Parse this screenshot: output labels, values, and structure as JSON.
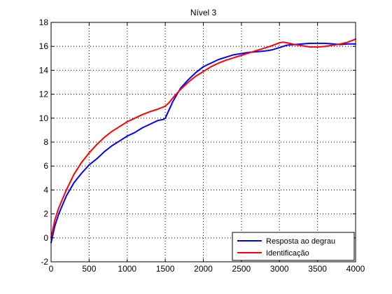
{
  "chart_data": {
    "type": "line",
    "title": "Nível 3",
    "xlabel": "",
    "ylabel": "",
    "xlim": [
      0,
      4000
    ],
    "ylim": [
      -2,
      18
    ],
    "xticks": [
      0,
      500,
      1000,
      1500,
      2000,
      2500,
      3000,
      3500,
      4000
    ],
    "yticks": [
      -2,
      0,
      2,
      4,
      6,
      8,
      10,
      12,
      14,
      16,
      18
    ],
    "grid": true,
    "legend_position": "bottom-right",
    "series": [
      {
        "name": "Resposta ao degrau",
        "color": "#0000ff",
        "x": [
          0,
          50,
          100,
          200,
          300,
          400,
          500,
          600,
          700,
          800,
          900,
          1000,
          1100,
          1200,
          1300,
          1400,
          1480,
          1500,
          1550,
          1600,
          1700,
          1800,
          1900,
          2000,
          2100,
          2200,
          2300,
          2400,
          2500,
          2600,
          2700,
          2800,
          2900,
          3000,
          3100,
          3200,
          3300,
          3400,
          3500,
          3600,
          3700,
          3800,
          3900,
          4000
        ],
        "y": [
          -0.4,
          1.0,
          2.0,
          3.5,
          4.6,
          5.4,
          6.1,
          6.6,
          7.2,
          7.7,
          8.1,
          8.5,
          8.8,
          9.2,
          9.5,
          9.8,
          9.9,
          10.0,
          10.7,
          11.4,
          12.5,
          13.2,
          13.8,
          14.3,
          14.6,
          14.9,
          15.1,
          15.3,
          15.4,
          15.5,
          15.55,
          15.6,
          15.7,
          15.9,
          16.1,
          16.15,
          16.2,
          16.25,
          16.25,
          16.25,
          16.2,
          16.15,
          16.2,
          16.2
        ]
      },
      {
        "name": "Identificação",
        "color": "#ff0000",
        "x": [
          0,
          50,
          100,
          200,
          300,
          400,
          500,
          600,
          700,
          800,
          900,
          1000,
          1100,
          1200,
          1300,
          1400,
          1500,
          1550,
          1600,
          1700,
          1800,
          1900,
          2000,
          2100,
          2200,
          2300,
          2400,
          2500,
          2600,
          2700,
          2800,
          2900,
          3000,
          3050,
          3100,
          3200,
          3300,
          3400,
          3500,
          3600,
          3700,
          3800,
          3900,
          4000
        ],
        "y": [
          0.0,
          1.5,
          2.5,
          4.0,
          5.3,
          6.3,
          7.1,
          7.8,
          8.4,
          8.9,
          9.3,
          9.7,
          10.0,
          10.3,
          10.55,
          10.75,
          11.0,
          11.3,
          11.7,
          12.4,
          13.0,
          13.5,
          13.9,
          14.3,
          14.6,
          14.85,
          15.05,
          15.25,
          15.45,
          15.65,
          15.85,
          16.05,
          16.3,
          16.35,
          16.3,
          16.15,
          16.05,
          15.95,
          15.95,
          16.0,
          16.1,
          16.2,
          16.35,
          16.6
        ]
      }
    ]
  }
}
